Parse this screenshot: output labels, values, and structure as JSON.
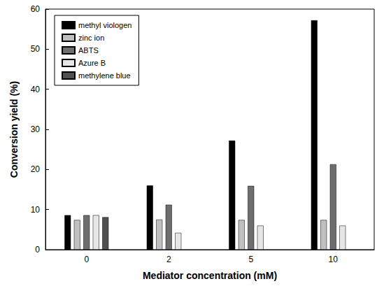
{
  "chart_data": {
    "type": "bar",
    "x_label": "Mediator concentration (mM)",
    "y_label": "Conversion yield (%)",
    "categories": [
      "0",
      "2",
      "5",
      "10"
    ],
    "series": [
      {
        "name": "methyl viologen",
        "color": "#000000",
        "values": [
          8.6,
          16.0,
          27.2,
          57.2
        ]
      },
      {
        "name": "zinc ion",
        "color": "#c0c0c0",
        "values": [
          7.4,
          7.5,
          7.4,
          7.4
        ]
      },
      {
        "name": "ABTS",
        "color": "#6e6e6e",
        "values": [
          8.6,
          11.2,
          15.9,
          21.3
        ]
      },
      {
        "name": "Azure B",
        "color": "#e6e6e6",
        "values": [
          8.6,
          4.2,
          6.0,
          6.0
        ]
      },
      {
        "name": "methylene blue",
        "color": "#505050",
        "values": [
          8.1,
          null,
          null,
          null
        ]
      }
    ],
    "ylim": [
      0,
      60
    ],
    "yticks": [
      0,
      10,
      20,
      30,
      40,
      50,
      60
    ],
    "grid": false,
    "legend": "upper left"
  }
}
